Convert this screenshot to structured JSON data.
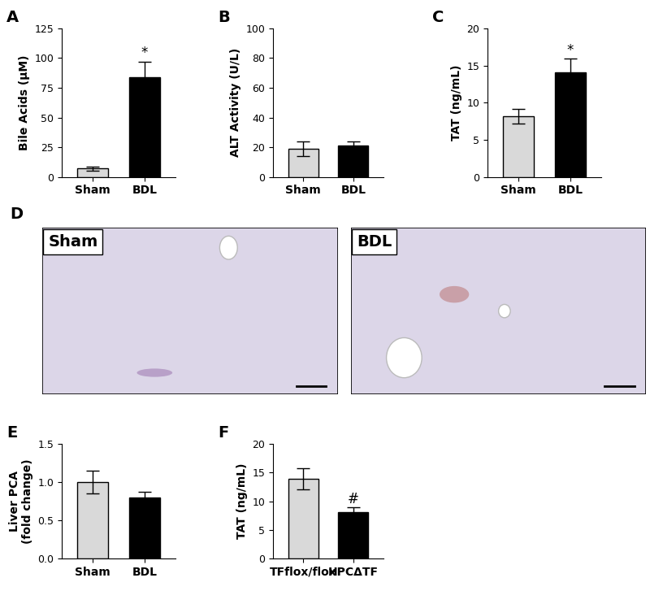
{
  "chart_data": [
    {
      "type": "bar",
      "title": "A",
      "ylabel": "Bile Acids (μM)",
      "categories": [
        "Sham",
        "BDL"
      ],
      "values": [
        7,
        84
      ],
      "errors": [
        1.5,
        13
      ],
      "colors": [
        "#d9d9d9",
        "#000000"
      ],
      "ylim": [
        0,
        125
      ],
      "yticks": [
        0,
        25,
        50,
        75,
        100,
        125
      ],
      "annotations": [
        {
          "text": "*",
          "category": "BDL"
        }
      ]
    },
    {
      "type": "bar",
      "title": "B",
      "ylabel": "ALT Activity (U/L)",
      "categories": [
        "Sham",
        "BDL"
      ],
      "values": [
        19,
        21
      ],
      "errors": [
        5,
        3
      ],
      "colors": [
        "#d9d9d9",
        "#000000"
      ],
      "ylim": [
        0,
        100
      ],
      "yticks": [
        0,
        20,
        40,
        60,
        80,
        100
      ]
    },
    {
      "type": "bar",
      "title": "C",
      "ylabel": "TAT (ng/mL)",
      "categories": [
        "Sham",
        "BDL"
      ],
      "values": [
        8.2,
        14.1
      ],
      "errors": [
        1.0,
        1.8
      ],
      "colors": [
        "#d9d9d9",
        "#000000"
      ],
      "ylim": [
        0,
        20
      ],
      "yticks": [
        0,
        5,
        10,
        15,
        20
      ],
      "annotations": [
        {
          "text": "*",
          "category": "BDL"
        }
      ]
    },
    {
      "type": "image",
      "title": "D",
      "panels": [
        "Sham",
        "BDL"
      ]
    },
    {
      "type": "bar",
      "title": "E",
      "ylabel": "Liver PCA\n(fold change)",
      "categories": [
        "Sham",
        "BDL"
      ],
      "values": [
        1.0,
        0.8
      ],
      "errors": [
        0.15,
        0.07
      ],
      "colors": [
        "#d9d9d9",
        "#000000"
      ],
      "ylim": [
        0,
        1.5
      ],
      "yticks": [
        {
          "value": 0,
          "label": "0.0"
        },
        0.5,
        {
          "value": 1,
          "label": "1.0"
        },
        1.5
      ]
    },
    {
      "type": "bar",
      "title": "F",
      "ylabel": "TAT (ng/mL)",
      "categories": [
        "TFflox/flox",
        "HPCΔTF"
      ],
      "values": [
        13.9,
        8.1
      ],
      "errors": [
        1.8,
        0.8
      ],
      "colors": [
        "#d9d9d9",
        "#000000"
      ],
      "ylim": [
        0,
        20
      ],
      "yticks": [
        0,
        5,
        10,
        15,
        20
      ],
      "annotations": [
        {
          "text": "#",
          "category": "HPCΔTF"
        }
      ]
    }
  ]
}
